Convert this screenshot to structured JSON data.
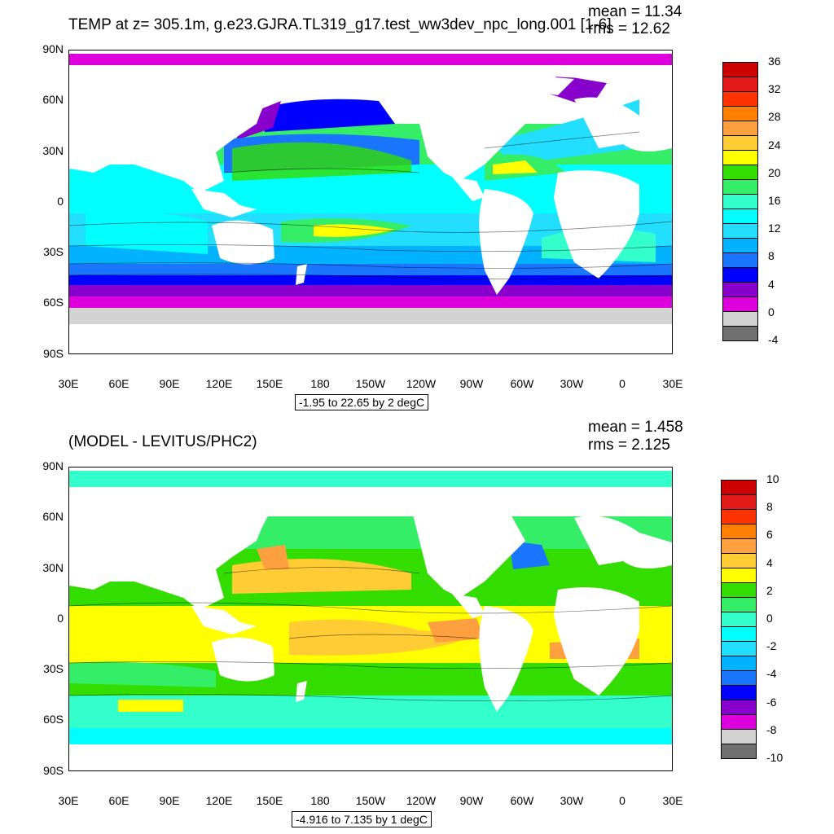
{
  "panels": [
    {
      "id": "top",
      "title": "TEMP at z= 305.1m, g.e23.GJRA.TL319_g17.test_ww3dev_npc_long.001 [1-6]",
      "mean_text": "mean = 11.34",
      "rms_text": "rms = 12.62",
      "info_text": "-1.95 to 22.65 by 2 degC",
      "y_ticks": [
        "90N",
        "60N",
        "30N",
        "0",
        "30S",
        "60S",
        "90S"
      ],
      "x_ticks": [
        "30E",
        "60E",
        "90E",
        "120E",
        "150E",
        "180",
        "150W",
        "120W",
        "90W",
        "60W",
        "30W",
        "0",
        "30E"
      ],
      "colorbar_labels": [
        "36",
        "32",
        "28",
        "24",
        "20",
        "16",
        "12",
        "8",
        "4",
        "0",
        "-4"
      ],
      "colorbar_colors": [
        "#cc0000",
        "#e41a1a",
        "#ff3300",
        "#ff8000",
        "#ffa040",
        "#ffcc33",
        "#ffff00",
        "#33dd00",
        "#33ee66",
        "#33ffcc",
        "#00ffff",
        "#22dfff",
        "#00b2ff",
        "#1a75ff",
        "#0000ff",
        "#8800cc",
        "#dd00dd",
        "#d3d3d3",
        "#707070"
      ]
    },
    {
      "id": "bottom",
      "title": "(MODEL - LEVITUS/PHC2)",
      "mean_text": "mean = 1.458",
      "rms_text": "rms = 2.125",
      "info_text": "-4.916 to 7.135 by 1 degC",
      "y_ticks": [
        "90N",
        "60N",
        "30N",
        "0",
        "30S",
        "60S",
        "90S"
      ],
      "x_ticks": [
        "30E",
        "60E",
        "90E",
        "120E",
        "150E",
        "180",
        "150W",
        "120W",
        "90W",
        "60W",
        "30W",
        "0",
        "30E"
      ],
      "colorbar_labels": [
        "10",
        "8",
        "6",
        "4",
        "2",
        "0",
        "-2",
        "-4",
        "-6",
        "-8",
        "-10"
      ],
      "colorbar_colors": [
        "#cc0000",
        "#e41a1a",
        "#ff3300",
        "#ff8000",
        "#ffa040",
        "#ffcc33",
        "#ffff00",
        "#33dd00",
        "#33ee66",
        "#33ffcc",
        "#00ffff",
        "#22dfff",
        "#00b2ff",
        "#1a75ff",
        "#0000ff",
        "#8800cc",
        "#dd00dd",
        "#d3d3d3",
        "#707070"
      ]
    }
  ],
  "chart_data": [
    {
      "type": "heatmap",
      "title": "TEMP at z= 305.1m, g.e23.GJRA.TL319_g17.test_ww3dev_npc_long.001 [1-6]",
      "xlabel": "",
      "ylabel": "",
      "x_range": [
        "30E",
        "30E"
      ],
      "y_range": [
        "90S",
        "90N"
      ],
      "colorbar_range": [
        -4,
        36
      ],
      "units": "degC",
      "annotations": [
        "mean = 11.34",
        "rms = 12.62",
        "-1.95 to 22.65 by 2 degC"
      ]
    },
    {
      "type": "heatmap",
      "title": "(MODEL - LEVITUS/PHC2)",
      "xlabel": "",
      "ylabel": "",
      "x_range": [
        "30E",
        "30E"
      ],
      "y_range": [
        "90S",
        "90N"
      ],
      "colorbar_range": [
        -10,
        10
      ],
      "units": "degC",
      "annotations": [
        "mean = 1.458",
        "rms = 2.125",
        "-4.916 to 7.135 by 1 degC"
      ]
    }
  ]
}
